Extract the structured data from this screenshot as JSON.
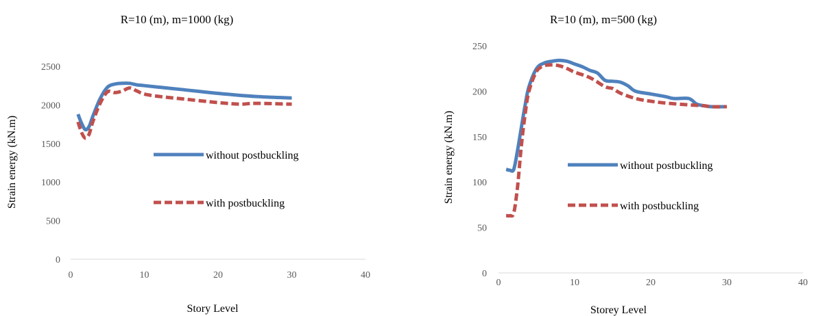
{
  "chart_data": [
    {
      "type": "line",
      "title": "R=10 (m), m=1000 (kg)",
      "xlabel": "Story Level",
      "ylabel": "Strain energy  (kN.m)",
      "xlim": [
        0,
        40
      ],
      "ylim": [
        0,
        2500
      ],
      "xticks": [
        "0",
        "10",
        "20",
        "30",
        "40"
      ],
      "yticks": [
        "0",
        "500",
        "1000",
        "1500",
        "2000",
        "2500"
      ],
      "grid": false,
      "legend_position": "center-right",
      "series": [
        {
          "name": "without postbuckling",
          "color": "#4f81bd",
          "style": "solid",
          "x": [
            1,
            1.5,
            2,
            2.5,
            3,
            4,
            5,
            6,
            7,
            8,
            9,
            10,
            12,
            15,
            20,
            25,
            30
          ],
          "y": [
            1880,
            1760,
            1680,
            1720,
            1850,
            2080,
            2230,
            2270,
            2280,
            2280,
            2260,
            2250,
            2230,
            2200,
            2150,
            2110,
            2090
          ]
        },
        {
          "name": "with postbuckling",
          "color": "#c0504d",
          "style": "dashed",
          "x": [
            1,
            1.5,
            2,
            2.5,
            3,
            4,
            5,
            6,
            7,
            8,
            9,
            10,
            12,
            15,
            20,
            23,
            25,
            30
          ],
          "y": [
            1780,
            1640,
            1570,
            1620,
            1780,
            2020,
            2170,
            2160,
            2180,
            2220,
            2180,
            2140,
            2110,
            2080,
            2030,
            2010,
            2020,
            2010
          ]
        }
      ]
    },
    {
      "type": "line",
      "title": "R=10 (m), m=500 (kg)",
      "xlabel": "Storey Level",
      "ylabel": "Strain energy  (kN.m)",
      "xlim": [
        0,
        40
      ],
      "ylim": [
        0,
        250
      ],
      "xticks": [
        "0",
        "10",
        "20",
        "30",
        "40"
      ],
      "yticks": [
        "0",
        "50",
        "100",
        "150",
        "200",
        "250"
      ],
      "grid": false,
      "legend_position": "center-right",
      "series": [
        {
          "name": "without postbuckling",
          "color": "#4f81bd",
          "style": "solid",
          "x": [
            1,
            1.5,
            2,
            2.5,
            3,
            3.5,
            4,
            5,
            6,
            7,
            8,
            9,
            10,
            11,
            12,
            13,
            14,
            15,
            16,
            17,
            18,
            20,
            22,
            23,
            25,
            26,
            27,
            28,
            30
          ],
          "y": [
            114,
            113,
            114,
            135,
            160,
            185,
            205,
            225,
            231,
            233,
            234,
            233,
            230,
            227,
            223,
            220,
            212,
            211,
            210,
            206,
            200,
            197,
            194,
            192,
            192,
            186,
            184,
            183,
            183
          ]
        },
        {
          "name": "with postbuckling",
          "color": "#c0504d",
          "style": "dashed",
          "x": [
            1,
            1.5,
            2,
            2.5,
            3,
            3.5,
            4,
            5,
            6,
            7,
            8,
            9,
            10,
            12,
            14,
            15,
            16,
            18,
            20,
            22,
            25,
            27,
            28,
            30
          ],
          "y": [
            63,
            63,
            66,
            95,
            140,
            175,
            200,
            222,
            228,
            229,
            228,
            225,
            221,
            215,
            205,
            203,
            198,
            192,
            189,
            187,
            185,
            184,
            183,
            183
          ]
        }
      ]
    }
  ]
}
